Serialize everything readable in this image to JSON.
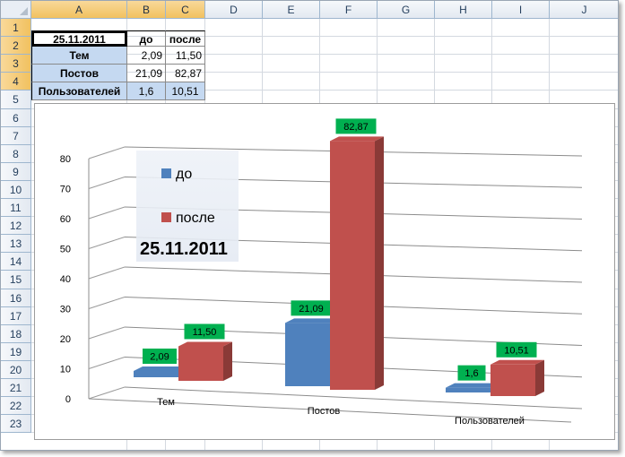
{
  "columns": [
    "A",
    "B",
    "C",
    "D",
    "E",
    "F",
    "G",
    "H",
    "I",
    "J"
  ],
  "rows": [
    "1",
    "2",
    "3",
    "4",
    "5",
    "6",
    "7",
    "8",
    "9",
    "10",
    "11",
    "12",
    "13",
    "14",
    "15",
    "16",
    "17",
    "18",
    "19",
    "20",
    "21",
    "22",
    "23"
  ],
  "table": {
    "a1": "25.11.2011",
    "b1": "до",
    "c1": "после",
    "rows": [
      {
        "label": "Тем",
        "b": "2,09",
        "c": "11,50"
      },
      {
        "label": "Постов",
        "b": "21,09",
        "c": "82,87"
      },
      {
        "label": "Пользователей",
        "b": "1,6",
        "c": "10,51"
      }
    ]
  },
  "chart_data": {
    "type": "bar",
    "categories": [
      "Тем",
      "Постов",
      "Пользователей"
    ],
    "series": [
      {
        "name": "до",
        "values": [
          2.09,
          21.09,
          1.6
        ],
        "labels": [
          "2,09",
          "21,09",
          "1,6"
        ],
        "color": "#4f81bd"
      },
      {
        "name": "после",
        "values": [
          11.5,
          82.87,
          10.51
        ],
        "labels": [
          "11,50",
          "82,87",
          "10,51"
        ],
        "color": "#c0504d"
      }
    ],
    "title": "25.11.2011",
    "yticks": [
      "0",
      "10",
      "20",
      "30",
      "40",
      "50",
      "60",
      "70",
      "80"
    ],
    "ylim": [
      0,
      80
    ],
    "grid": true,
    "legend_position": "top-left",
    "label_bg": "#00b050",
    "style": "3d-column"
  }
}
